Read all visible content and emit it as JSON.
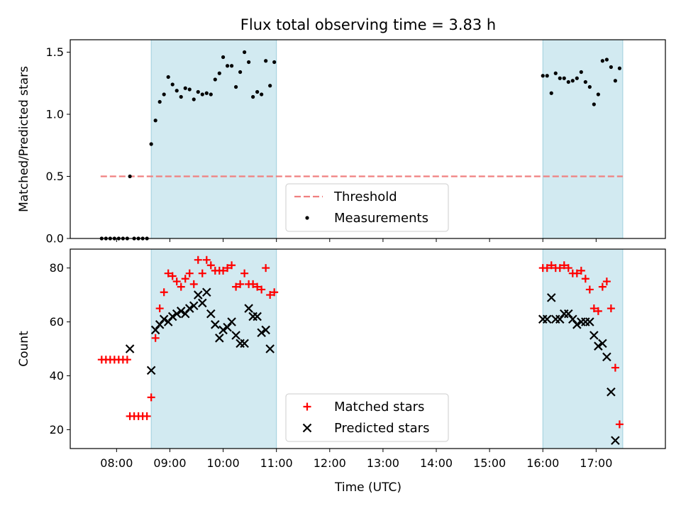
{
  "chart_data": {
    "title": "Flux total observing time = 3.83 h",
    "xlabel": "Time (UTC)",
    "x_unit": "hours UTC",
    "xlim": [
      7.13,
      18.3
    ],
    "x_ticks": [
      {
        "value": 8,
        "label": "08:00"
      },
      {
        "value": 9,
        "label": "09:00"
      },
      {
        "value": 10,
        "label": "10:00"
      },
      {
        "value": 11,
        "label": "11:00"
      },
      {
        "value": 12,
        "label": "12:00"
      },
      {
        "value": 13,
        "label": "13:00"
      },
      {
        "value": 14,
        "label": "14:00"
      },
      {
        "value": 15,
        "label": "15:00"
      },
      {
        "value": 16,
        "label": "16:00"
      },
      {
        "value": 17,
        "label": "17:00"
      }
    ],
    "shaded_regions": [
      [
        8.65,
        11.0
      ],
      [
        16.0,
        17.5
      ]
    ],
    "shade_color": "#add8e6",
    "panels": [
      {
        "type": "scatter",
        "ylabel": "Matched/Predicted stars",
        "ylim": [
          0,
          1.6
        ],
        "y_ticks": [
          "0.0",
          "0.5",
          "1.0",
          "1.5"
        ],
        "y_tick_values": [
          0,
          0.5,
          1.0,
          1.5
        ],
        "legend_position": "bottom-center",
        "threshold": {
          "name": "Threshold",
          "value": 0.5,
          "x_range": [
            7.7,
            17.5
          ],
          "color": "#f08080"
        },
        "series": [
          {
            "name": "Measurements",
            "color": "#000000",
            "marker": "dot",
            "points": [
              [
                7.72,
                0
              ],
              [
                7.8,
                0
              ],
              [
                7.88,
                0
              ],
              [
                7.96,
                0
              ],
              [
                8.04,
                0
              ],
              [
                8.12,
                0
              ],
              [
                8.2,
                0
              ],
              [
                8.25,
                0.5
              ],
              [
                8.33,
                0
              ],
              [
                8.41,
                0
              ],
              [
                8.49,
                0
              ],
              [
                8.57,
                0
              ],
              [
                8.65,
                0.76
              ],
              [
                8.73,
                0.95
              ],
              [
                8.81,
                1.1
              ],
              [
                8.89,
                1.16
              ],
              [
                8.97,
                1.3
              ],
              [
                9.05,
                1.24
              ],
              [
                9.13,
                1.19
              ],
              [
                9.21,
                1.14
              ],
              [
                9.29,
                1.21
              ],
              [
                9.37,
                1.2
              ],
              [
                9.45,
                1.12
              ],
              [
                9.53,
                1.18
              ],
              [
                9.61,
                1.16
              ],
              [
                9.69,
                1.17
              ],
              [
                9.77,
                1.16
              ],
              [
                9.85,
                1.28
              ],
              [
                9.93,
                1.33
              ],
              [
                10.0,
                1.46
              ],
              [
                10.08,
                1.39
              ],
              [
                10.16,
                1.39
              ],
              [
                10.24,
                1.22
              ],
              [
                10.32,
                1.34
              ],
              [
                10.4,
                1.5
              ],
              [
                10.48,
                1.42
              ],
              [
                10.56,
                1.14
              ],
              [
                10.64,
                1.18
              ],
              [
                10.72,
                1.16
              ],
              [
                10.8,
                1.43
              ],
              [
                10.88,
                1.23
              ],
              [
                10.96,
                1.42
              ],
              [
                16.0,
                1.31
              ],
              [
                16.08,
                1.31
              ],
              [
                16.16,
                1.17
              ],
              [
                16.24,
                1.33
              ],
              [
                16.32,
                1.29
              ],
              [
                16.4,
                1.29
              ],
              [
                16.48,
                1.26
              ],
              [
                16.56,
                1.27
              ],
              [
                16.64,
                1.29
              ],
              [
                16.72,
                1.34
              ],
              [
                16.8,
                1.26
              ],
              [
                16.88,
                1.22
              ],
              [
                16.96,
                1.08
              ],
              [
                17.04,
                1.16
              ],
              [
                17.12,
                1.43
              ],
              [
                17.2,
                1.44
              ],
              [
                17.28,
                1.38
              ],
              [
                17.36,
                1.27
              ],
              [
                17.44,
                1.37
              ]
            ]
          }
        ]
      },
      {
        "type": "scatter",
        "ylabel": "Count",
        "ylim": [
          13,
          87
        ],
        "y_ticks": [
          "20",
          "40",
          "60",
          "80"
        ],
        "y_tick_values": [
          20,
          40,
          60,
          80
        ],
        "legend_position": "bottom-center",
        "series": [
          {
            "name": "Matched stars",
            "color": "#ff0000",
            "marker": "plus",
            "points": [
              [
                7.72,
                46
              ],
              [
                7.8,
                46
              ],
              [
                7.88,
                46
              ],
              [
                7.96,
                46
              ],
              [
                8.04,
                46
              ],
              [
                8.12,
                46
              ],
              [
                8.2,
                46
              ],
              [
                8.25,
                25
              ],
              [
                8.33,
                25
              ],
              [
                8.41,
                25
              ],
              [
                8.49,
                25
              ],
              [
                8.57,
                25
              ],
              [
                8.65,
                32
              ],
              [
                8.73,
                54
              ],
              [
                8.81,
                65
              ],
              [
                8.89,
                71
              ],
              [
                8.97,
                78
              ],
              [
                9.05,
                77
              ],
              [
                9.13,
                75
              ],
              [
                9.21,
                73
              ],
              [
                9.29,
                76
              ],
              [
                9.37,
                78
              ],
              [
                9.45,
                74
              ],
              [
                9.53,
                83
              ],
              [
                9.61,
                78
              ],
              [
                9.69,
                83
              ],
              [
                9.77,
                81
              ],
              [
                9.85,
                79
              ],
              [
                9.93,
                79
              ],
              [
                10.0,
                79
              ],
              [
                10.08,
                80
              ],
              [
                10.16,
                81
              ],
              [
                10.24,
                73
              ],
              [
                10.32,
                74
              ],
              [
                10.4,
                78
              ],
              [
                10.48,
                74
              ],
              [
                10.56,
                74
              ],
              [
                10.64,
                73
              ],
              [
                10.72,
                72
              ],
              [
                10.8,
                80
              ],
              [
                10.88,
                70
              ],
              [
                10.96,
                71
              ],
              [
                16.0,
                80
              ],
              [
                16.08,
                80
              ],
              [
                16.16,
                81
              ],
              [
                16.24,
                80
              ],
              [
                16.32,
                80
              ],
              [
                16.4,
                81
              ],
              [
                16.48,
                80
              ],
              [
                16.56,
                78
              ],
              [
                16.64,
                78
              ],
              [
                16.72,
                79
              ],
              [
                16.8,
                76
              ],
              [
                16.88,
                72
              ],
              [
                16.96,
                65
              ],
              [
                17.04,
                64
              ],
              [
                17.12,
                73
              ],
              [
                17.2,
                75
              ],
              [
                17.28,
                65
              ],
              [
                17.36,
                43
              ],
              [
                17.44,
                22
              ]
            ]
          },
          {
            "name": "Predicted stars",
            "color": "#000000",
            "marker": "x",
            "points": [
              [
                8.25,
                50
              ],
              [
                8.65,
                42
              ],
              [
                8.73,
                57
              ],
              [
                8.81,
                59
              ],
              [
                8.89,
                61
              ],
              [
                8.97,
                60
              ],
              [
                9.05,
                62
              ],
              [
                9.13,
                63
              ],
              [
                9.21,
                64
              ],
              [
                9.29,
                63
              ],
              [
                9.37,
                65
              ],
              [
                9.45,
                66
              ],
              [
                9.53,
                70
              ],
              [
                9.61,
                67
              ],
              [
                9.69,
                71
              ],
              [
                9.77,
                63
              ],
              [
                9.85,
                59
              ],
              [
                9.93,
                54
              ],
              [
                10.0,
                57
              ],
              [
                10.08,
                58
              ],
              [
                10.16,
                60
              ],
              [
                10.24,
                55
              ],
              [
                10.32,
                52
              ],
              [
                10.4,
                52
              ],
              [
                10.48,
                65
              ],
              [
                10.56,
                62
              ],
              [
                10.64,
                62
              ],
              [
                10.72,
                56
              ],
              [
                10.8,
                57
              ],
              [
                10.88,
                50
              ],
              [
                16.0,
                61
              ],
              [
                16.08,
                61
              ],
              [
                16.16,
                69
              ],
              [
                16.24,
                61
              ],
              [
                16.32,
                61
              ],
              [
                16.4,
                63
              ],
              [
                16.48,
                63
              ],
              [
                16.56,
                61
              ],
              [
                16.64,
                59
              ],
              [
                16.72,
                60
              ],
              [
                16.8,
                60
              ],
              [
                16.88,
                60
              ],
              [
                16.96,
                55
              ],
              [
                17.04,
                51
              ],
              [
                17.12,
                52
              ],
              [
                17.2,
                47
              ],
              [
                17.28,
                34
              ],
              [
                17.36,
                16
              ]
            ]
          }
        ]
      }
    ]
  }
}
